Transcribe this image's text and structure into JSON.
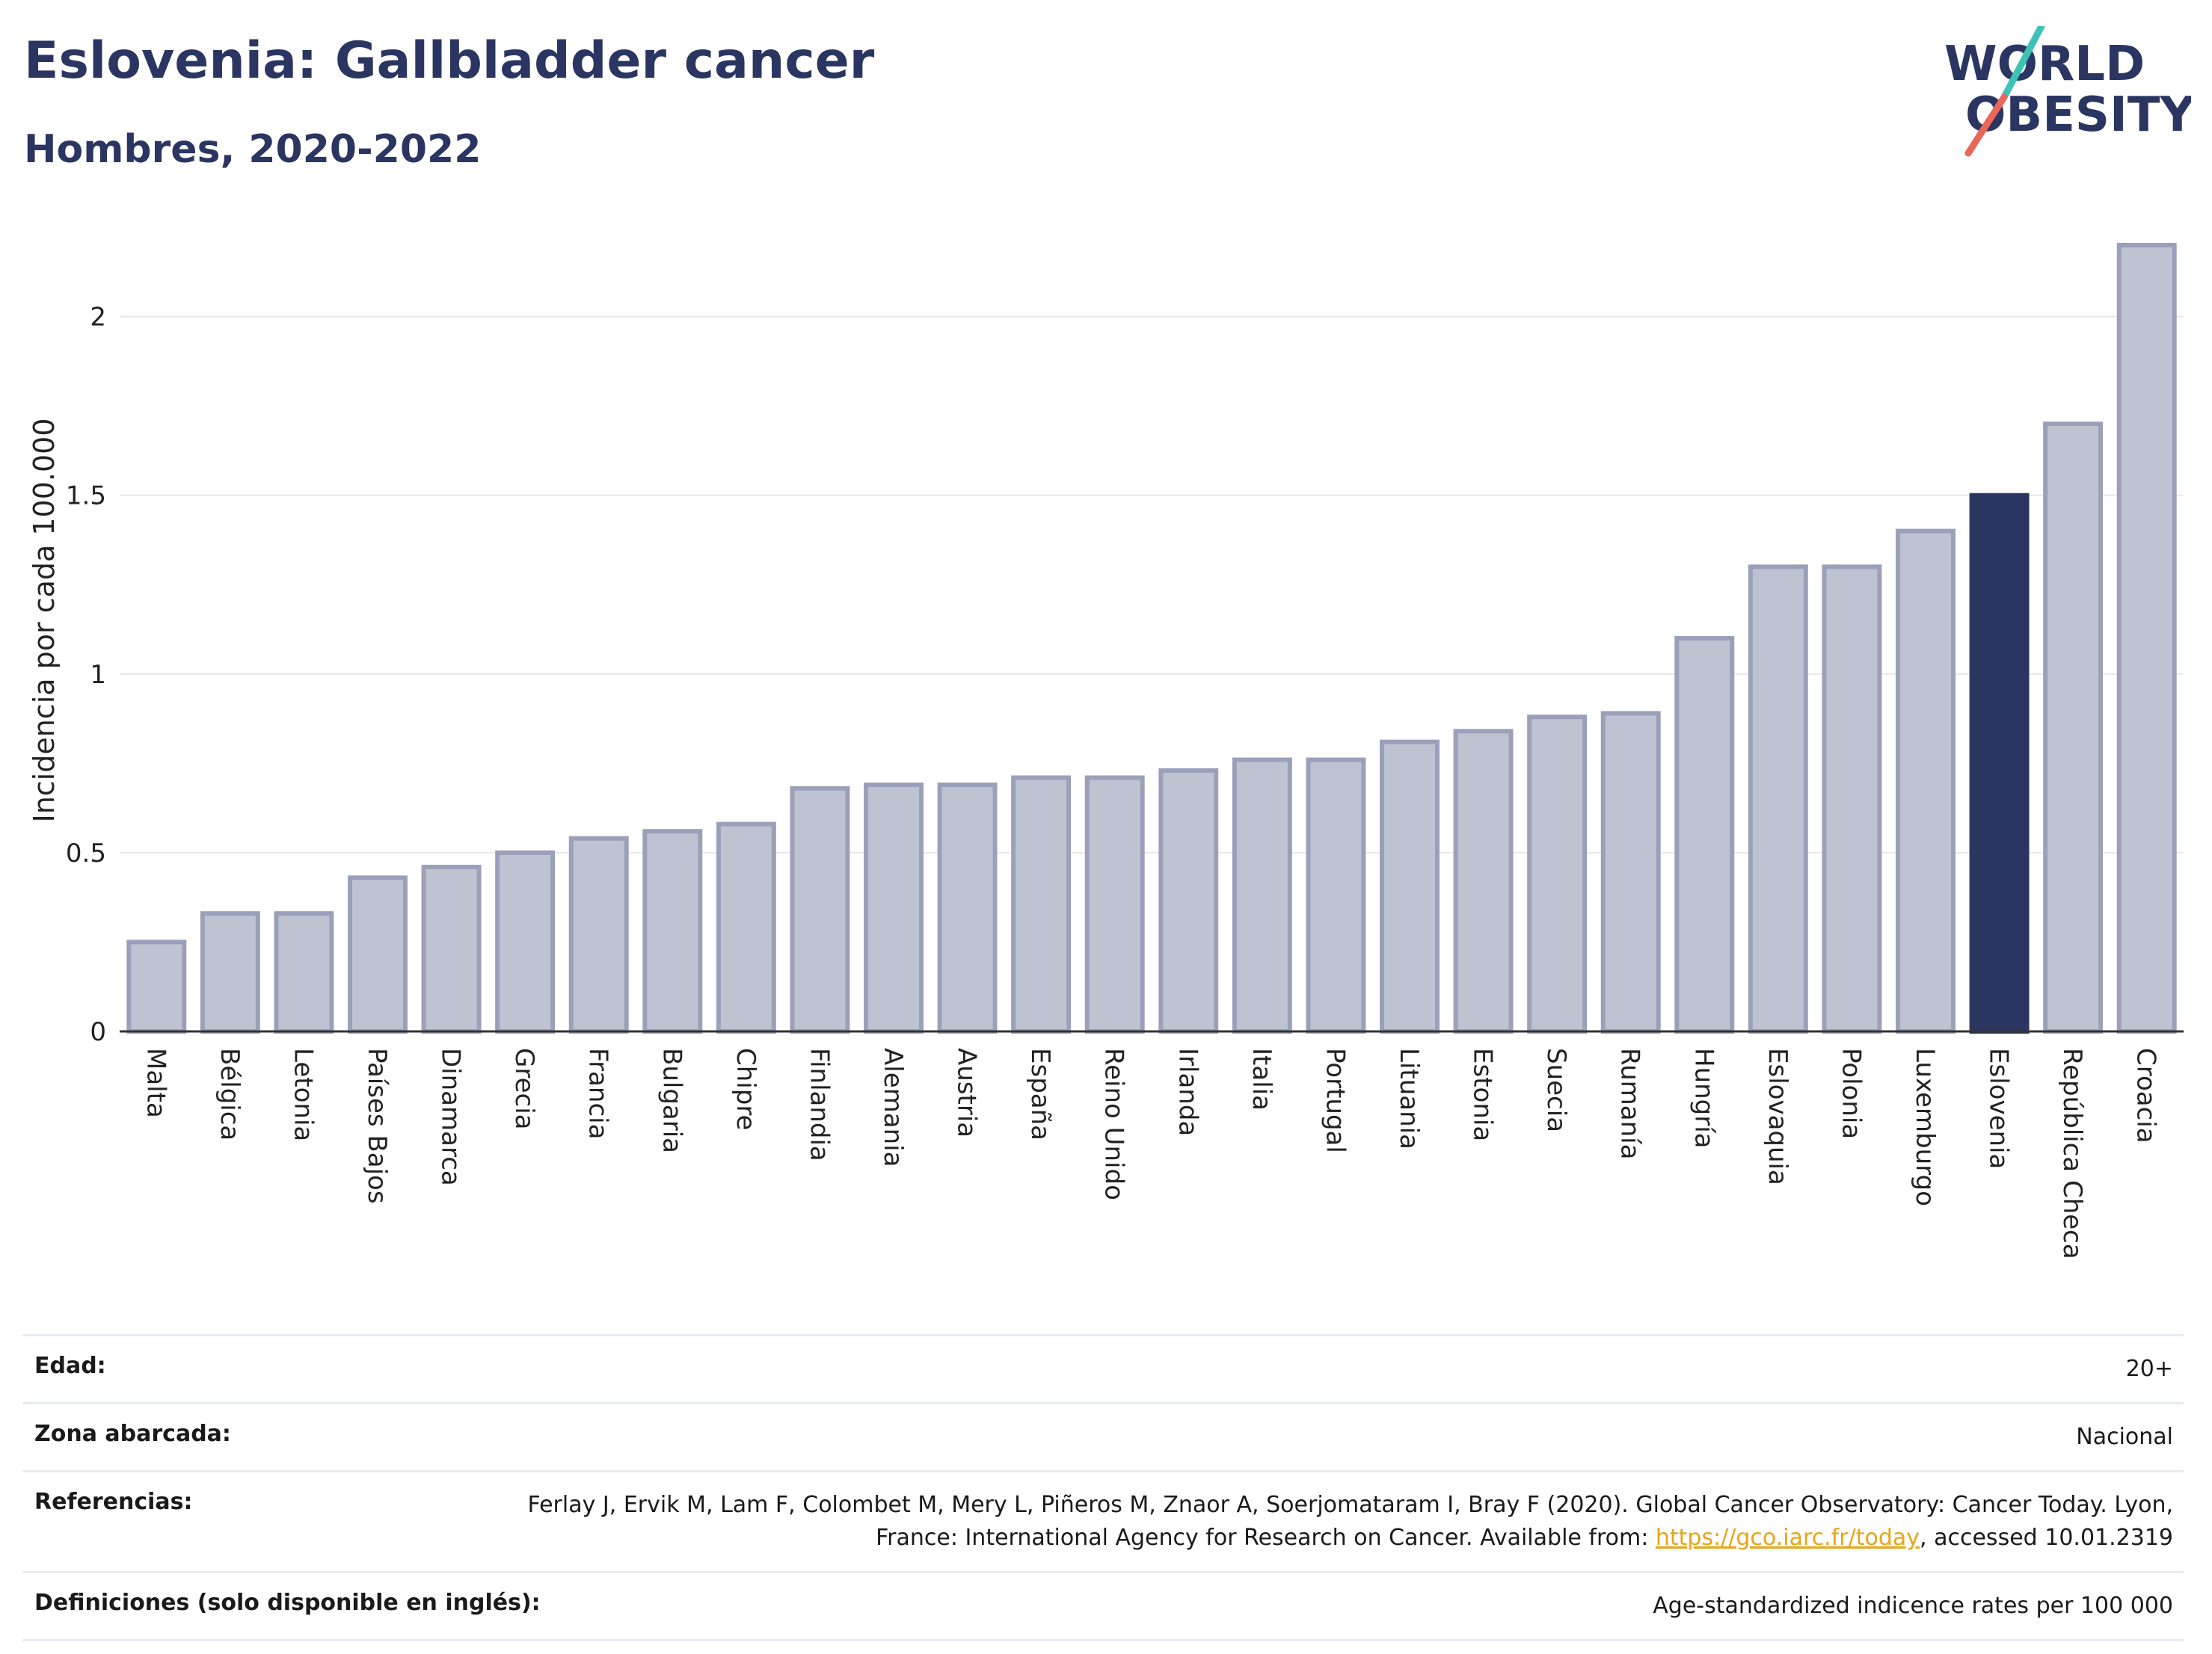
{
  "header": {
    "title": "Eslovenia: Gallbladder cancer",
    "subtitle": "Hombres, 2020-2022"
  },
  "logo": {
    "line1": "WORLD",
    "line2": "OBESITY"
  },
  "colors": {
    "bar": "#bfc3d1",
    "bar_border": "#9aa0b9",
    "highlight": "#2b3561",
    "text": "#2b3561"
  },
  "chart_data": {
    "type": "bar",
    "ylabel": "Incidencia por cada 100.000",
    "xlabel": "",
    "ylim": [
      0,
      2.2
    ],
    "yticks": [
      0,
      0.5,
      1,
      1.5,
      2
    ],
    "ytick_labels": [
      "0",
      "0.5",
      "1",
      "1.5",
      "2"
    ],
    "grid": true,
    "highlight": "Eslovenia",
    "categories": [
      "Malta",
      "Bélgica",
      "Letonia",
      "Países Bajos",
      "Dinamarca",
      "Grecia",
      "Francia",
      "Bulgaria",
      "Chipre",
      "Finlandia",
      "Alemania",
      "Austria",
      "España",
      "Reino Unido",
      "Irlanda",
      "Italia",
      "Portugal",
      "Lituania",
      "Estonia",
      "Suecia",
      "Rumanía",
      "Hungría",
      "Eslovaquia",
      "Polonia",
      "Luxemburgo",
      "Eslovenia",
      "República Checa",
      "Croacia"
    ],
    "values": [
      0.25,
      0.33,
      0.33,
      0.43,
      0.46,
      0.5,
      0.54,
      0.56,
      0.58,
      0.68,
      0.69,
      0.69,
      0.71,
      0.71,
      0.73,
      0.76,
      0.76,
      0.81,
      0.84,
      0.88,
      0.89,
      1.1,
      1.3,
      1.3,
      1.4,
      1.5,
      1.7,
      2.2
    ]
  },
  "info": {
    "age_label": "Edad:",
    "age_value": "20+",
    "area_label": "Zona abarcada:",
    "area_value": "Nacional",
    "ref_label": "Referencias:",
    "ref_text_1": "Ferlay J, Ervik M, Lam F, Colombet M, Mery L, Piñeros M, Znaor A, Soerjomataram I, Bray F (2020). Global Cancer Observatory: Cancer Today. Lyon, France: International Agency for Research on Cancer. Available from: ",
    "ref_link": "https://gco.iarc.fr/today",
    "ref_text_2": ", accessed 10.01.2319",
    "def_label": "Definiciones (solo disponible en inglés):",
    "def_value": "Age-standardized indicence rates per 100 000"
  }
}
